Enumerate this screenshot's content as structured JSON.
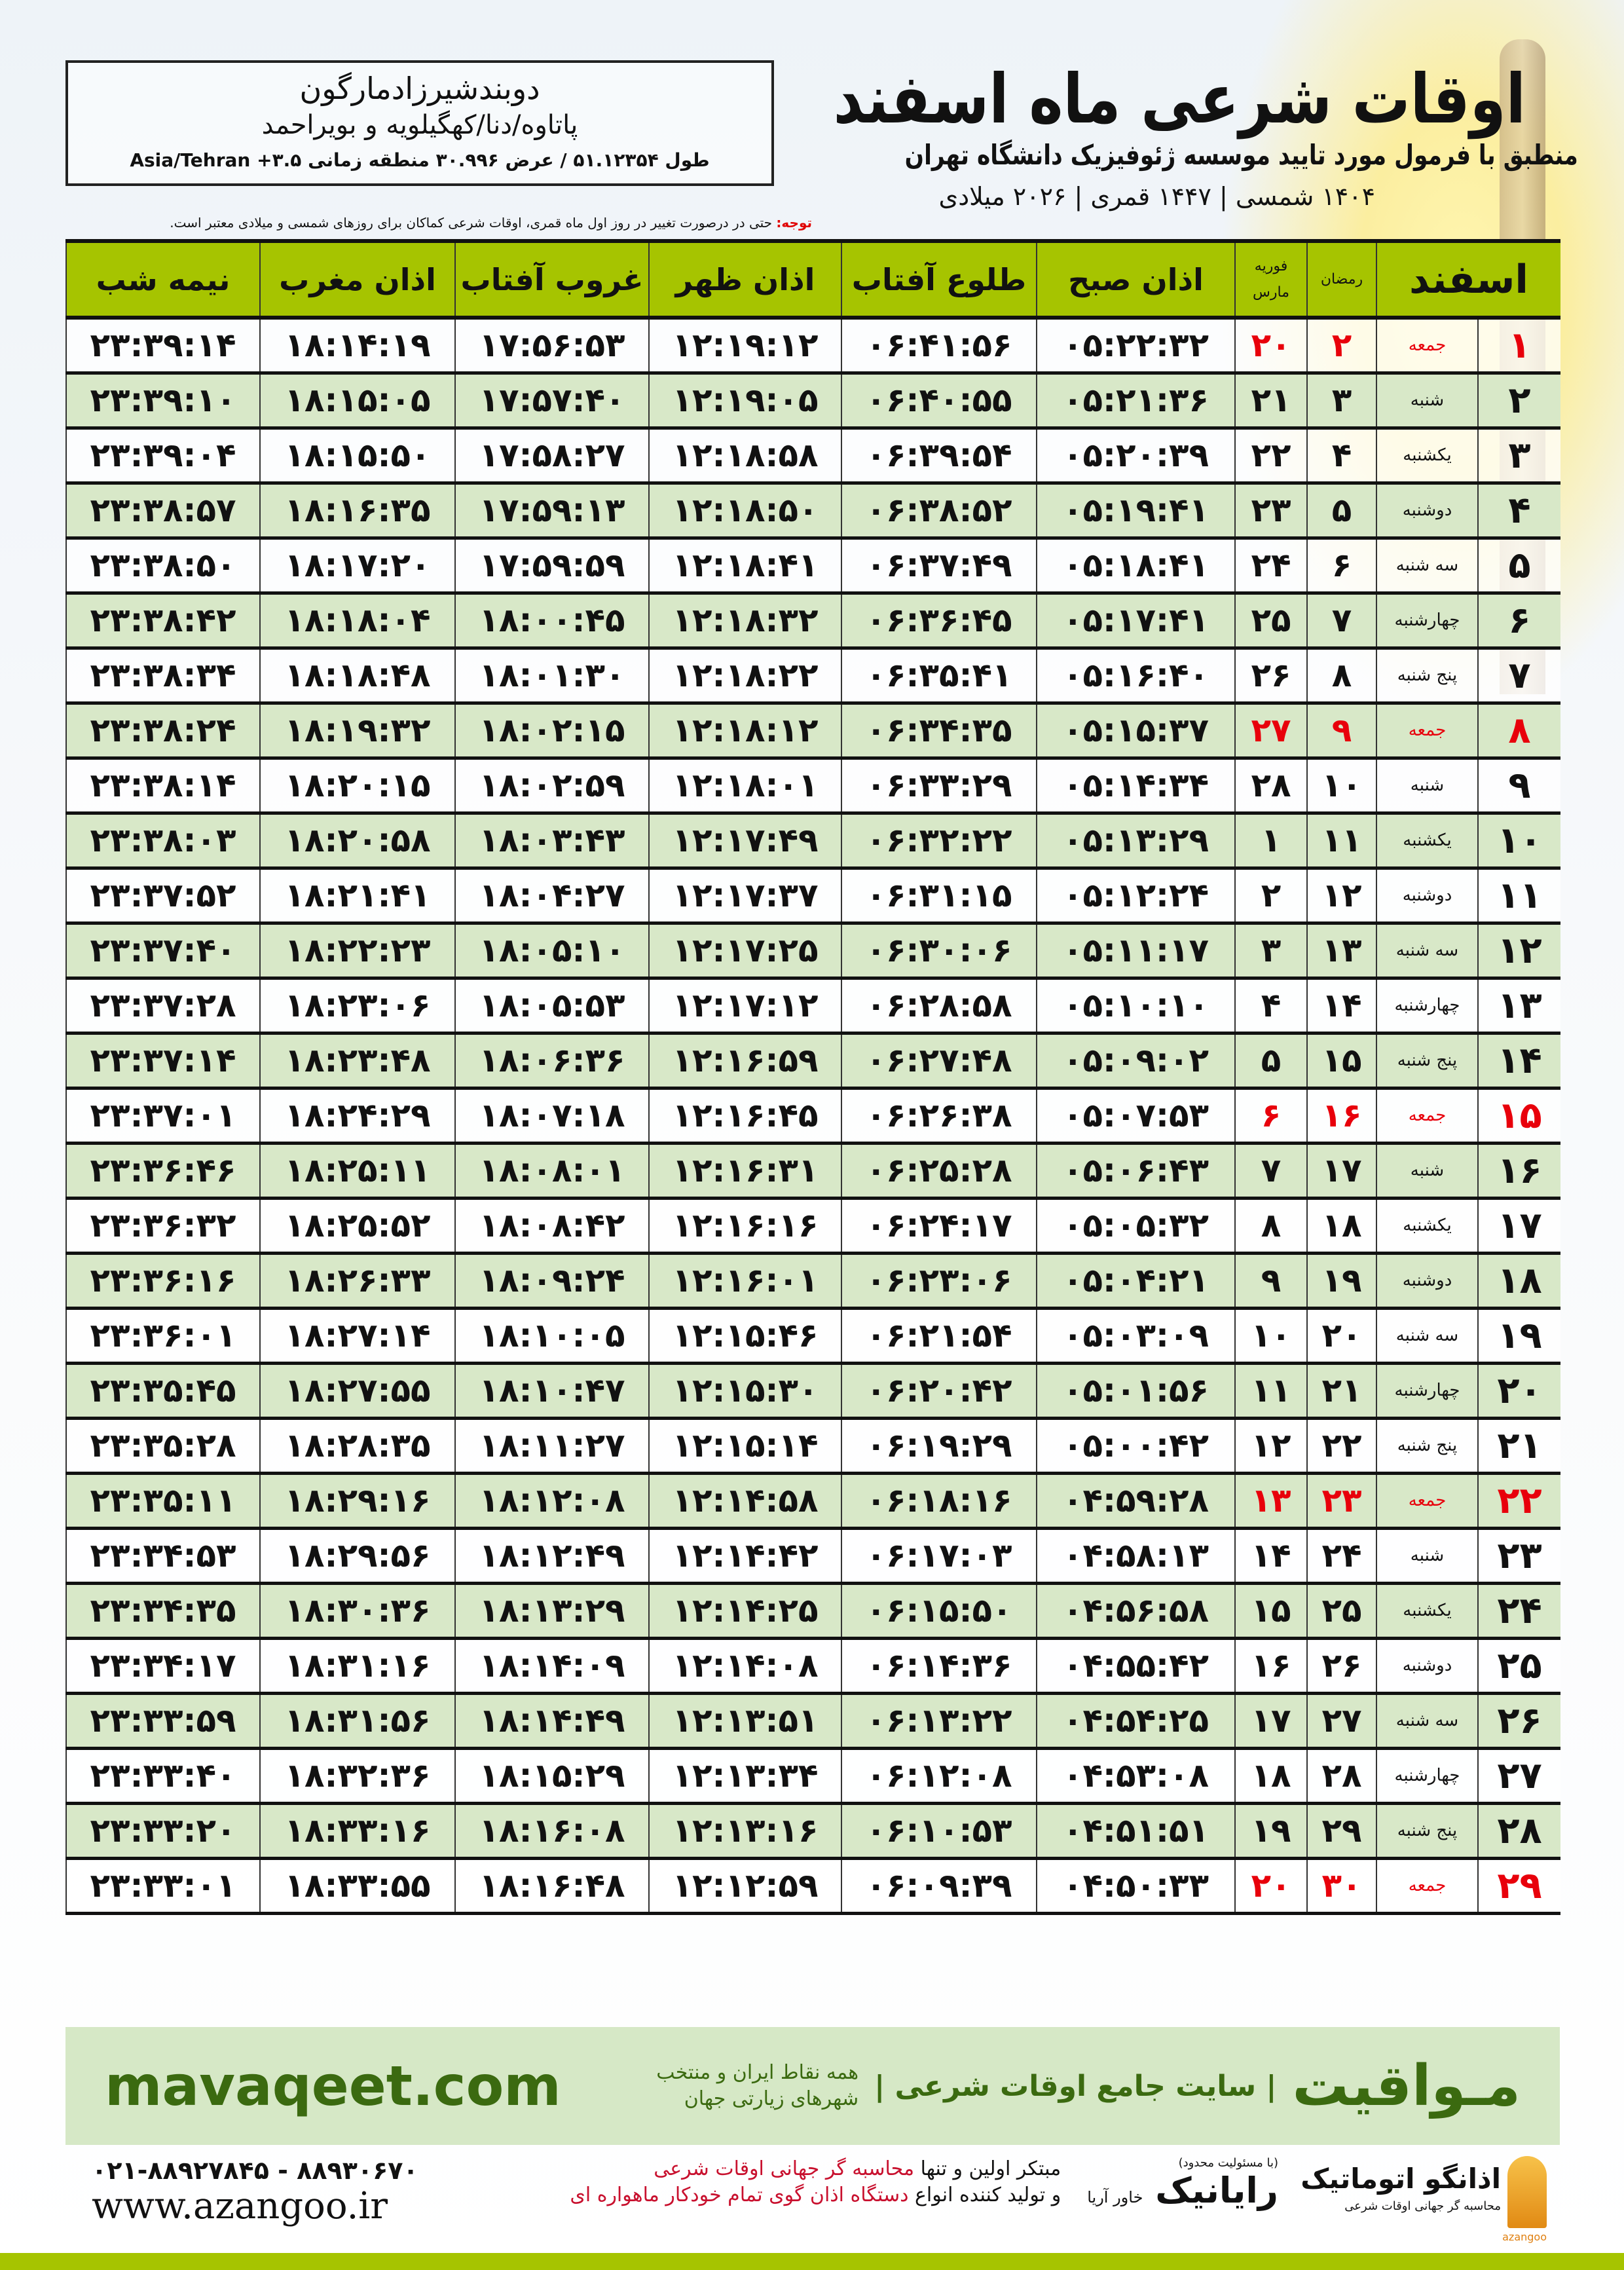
{
  "header": {
    "title": "اوقات شرعی ماه اسفند",
    "subtitle": "منطبق با فرمول مورد تایید موسسه ژئوفیزیک دانشگاه تهران",
    "dates": "۱۴۰۴ شمسی | ۱۴۴۷ قمری | ۲۰۲۶ میلادی"
  },
  "location": {
    "city": "دوبندشیرزادمارگون",
    "region": "پاتاوه/دنا/کهگیلویه و بویراحمد",
    "coords": "طول ۵۱.۱۲۳۵۴ / عرض ۳۰.۹۹۶ منطقه زمانی ۳.۵+ Asia/Tehran"
  },
  "note": {
    "label": "توجه:",
    "text": " حتی در درصورت تغییر در روز اول ماه قمری، اوقات شرعی کماکان برای روزهای شمسی و میلادی معتبر است."
  },
  "colors": {
    "header_green": "#a6c400",
    "row_green": "#d8e8c8",
    "friday_red": "#e8000b",
    "brand_green": "#3b6a10"
  },
  "table": {
    "headers": {
      "month": "اسفند",
      "ramadan": "رمضان",
      "greg_top": "فوریه",
      "greg_bottom": "مارس",
      "fajr": "اذان صبح",
      "sunrise": "طلوع آفتاب",
      "dhuhr": "اذان ظهر",
      "sunset": "غروب آفتاب",
      "maghrib": "اذان مغرب",
      "midnight": "نیمه شب"
    },
    "rows": [
      [
        "۱",
        "جمعه",
        "۲",
        "۲۰",
        "۰۵:۲۲:۳۲",
        "۰۶:۴۱:۵۶",
        "۱۲:۱۹:۱۲",
        "۱۷:۵۶:۵۳",
        "۱۸:۱۴:۱۹",
        "۲۳:۳۹:۱۴",
        true
      ],
      [
        "۲",
        "شنبه",
        "۳",
        "۲۱",
        "۰۵:۲۱:۳۶",
        "۰۶:۴۰:۵۵",
        "۱۲:۱۹:۰۵",
        "۱۷:۵۷:۴۰",
        "۱۸:۱۵:۰۵",
        "۲۳:۳۹:۱۰",
        false
      ],
      [
        "۳",
        "یکشنبه",
        "۴",
        "۲۲",
        "۰۵:۲۰:۳۹",
        "۰۶:۳۹:۵۴",
        "۱۲:۱۸:۵۸",
        "۱۷:۵۸:۲۷",
        "۱۸:۱۵:۵۰",
        "۲۳:۳۹:۰۴",
        false
      ],
      [
        "۴",
        "دوشنبه",
        "۵",
        "۲۳",
        "۰۵:۱۹:۴۱",
        "۰۶:۳۸:۵۲",
        "۱۲:۱۸:۵۰",
        "۱۷:۵۹:۱۳",
        "۱۸:۱۶:۳۵",
        "۲۳:۳۸:۵۷",
        false
      ],
      [
        "۵",
        "سه شنبه",
        "۶",
        "۲۴",
        "۰۵:۱۸:۴۱",
        "۰۶:۳۷:۴۹",
        "۱۲:۱۸:۴۱",
        "۱۷:۵۹:۵۹",
        "۱۸:۱۷:۲۰",
        "۲۳:۳۸:۵۰",
        false
      ],
      [
        "۶",
        "چهارشنبه",
        "۷",
        "۲۵",
        "۰۵:۱۷:۴۱",
        "۰۶:۳۶:۴۵",
        "۱۲:۱۸:۳۲",
        "۱۸:۰۰:۴۵",
        "۱۸:۱۸:۰۴",
        "۲۳:۳۸:۴۲",
        false
      ],
      [
        "۷",
        "پنج شنبه",
        "۸",
        "۲۶",
        "۰۵:۱۶:۴۰",
        "۰۶:۳۵:۴۱",
        "۱۲:۱۸:۲۲",
        "۱۸:۰۱:۳۰",
        "۱۸:۱۸:۴۸",
        "۲۳:۳۸:۳۴",
        false
      ],
      [
        "۸",
        "جمعه",
        "۹",
        "۲۷",
        "۰۵:۱۵:۳۷",
        "۰۶:۳۴:۳۵",
        "۱۲:۱۸:۱۲",
        "۱۸:۰۲:۱۵",
        "۱۸:۱۹:۳۲",
        "۲۳:۳۸:۲۴",
        true
      ],
      [
        "۹",
        "شنبه",
        "۱۰",
        "۲۸",
        "۰۵:۱۴:۳۴",
        "۰۶:۳۳:۲۹",
        "۱۲:۱۸:۰۱",
        "۱۸:۰۲:۵۹",
        "۱۸:۲۰:۱۵",
        "۲۳:۳۸:۱۴",
        false
      ],
      [
        "۱۰",
        "یکشنبه",
        "۱۱",
        "۱",
        "۰۵:۱۳:۲۹",
        "۰۶:۳۲:۲۲",
        "۱۲:۱۷:۴۹",
        "۱۸:۰۳:۴۳",
        "۱۸:۲۰:۵۸",
        "۲۳:۳۸:۰۳",
        false
      ],
      [
        "۱۱",
        "دوشنبه",
        "۱۲",
        "۲",
        "۰۵:۱۲:۲۴",
        "۰۶:۳۱:۱۵",
        "۱۲:۱۷:۳۷",
        "۱۸:۰۴:۲۷",
        "۱۸:۲۱:۴۱",
        "۲۳:۳۷:۵۲",
        false
      ],
      [
        "۱۲",
        "سه شنبه",
        "۱۳",
        "۳",
        "۰۵:۱۱:۱۷",
        "۰۶:۳۰:۰۶",
        "۱۲:۱۷:۲۵",
        "۱۸:۰۵:۱۰",
        "۱۸:۲۲:۲۳",
        "۲۳:۳۷:۴۰",
        false
      ],
      [
        "۱۳",
        "چهارشنبه",
        "۱۴",
        "۴",
        "۰۵:۱۰:۱۰",
        "۰۶:۲۸:۵۸",
        "۱۲:۱۷:۱۲",
        "۱۸:۰۵:۵۳",
        "۱۸:۲۳:۰۶",
        "۲۳:۳۷:۲۸",
        false
      ],
      [
        "۱۴",
        "پنج شنبه",
        "۱۵",
        "۵",
        "۰۵:۰۹:۰۲",
        "۰۶:۲۷:۴۸",
        "۱۲:۱۶:۵۹",
        "۱۸:۰۶:۳۶",
        "۱۸:۲۳:۴۸",
        "۲۳:۳۷:۱۴",
        false
      ],
      [
        "۱۵",
        "جمعه",
        "۱۶",
        "۶",
        "۰۵:۰۷:۵۳",
        "۰۶:۲۶:۳۸",
        "۱۲:۱۶:۴۵",
        "۱۸:۰۷:۱۸",
        "۱۸:۲۴:۲۹",
        "۲۳:۳۷:۰۱",
        true
      ],
      [
        "۱۶",
        "شنبه",
        "۱۷",
        "۷",
        "۰۵:۰۶:۴۳",
        "۰۶:۲۵:۲۸",
        "۱۲:۱۶:۳۱",
        "۱۸:۰۸:۰۱",
        "۱۸:۲۵:۱۱",
        "۲۳:۳۶:۴۶",
        false
      ],
      [
        "۱۷",
        "یکشنبه",
        "۱۸",
        "۸",
        "۰۵:۰۵:۳۲",
        "۰۶:۲۴:۱۷",
        "۱۲:۱۶:۱۶",
        "۱۸:۰۸:۴۲",
        "۱۸:۲۵:۵۲",
        "۲۳:۳۶:۳۲",
        false
      ],
      [
        "۱۸",
        "دوشنبه",
        "۱۹",
        "۹",
        "۰۵:۰۴:۲۱",
        "۰۶:۲۳:۰۶",
        "۱۲:۱۶:۰۱",
        "۱۸:۰۹:۲۴",
        "۱۸:۲۶:۳۳",
        "۲۳:۳۶:۱۶",
        false
      ],
      [
        "۱۹",
        "سه شنبه",
        "۲۰",
        "۱۰",
        "۰۵:۰۳:۰۹",
        "۰۶:۲۱:۵۴",
        "۱۲:۱۵:۴۶",
        "۱۸:۱۰:۰۵",
        "۱۸:۲۷:۱۴",
        "۲۳:۳۶:۰۱",
        false
      ],
      [
        "۲۰",
        "چهارشنبه",
        "۲۱",
        "۱۱",
        "۰۵:۰۱:۵۶",
        "۰۶:۲۰:۴۲",
        "۱۲:۱۵:۳۰",
        "۱۸:۱۰:۴۷",
        "۱۸:۲۷:۵۵",
        "۲۳:۳۵:۴۵",
        false
      ],
      [
        "۲۱",
        "پنج شنبه",
        "۲۲",
        "۱۲",
        "۰۵:۰۰:۴۲",
        "۰۶:۱۹:۲۹",
        "۱۲:۱۵:۱۴",
        "۱۸:۱۱:۲۷",
        "۱۸:۲۸:۳۵",
        "۲۳:۳۵:۲۸",
        false
      ],
      [
        "۲۲",
        "جمعه",
        "۲۳",
        "۱۳",
        "۰۴:۵۹:۲۸",
        "۰۶:۱۸:۱۶",
        "۱۲:۱۴:۵۸",
        "۱۸:۱۲:۰۸",
        "۱۸:۲۹:۱۶",
        "۲۳:۳۵:۱۱",
        true
      ],
      [
        "۲۳",
        "شنبه",
        "۲۴",
        "۱۴",
        "۰۴:۵۸:۱۳",
        "۰۶:۱۷:۰۳",
        "۱۲:۱۴:۴۲",
        "۱۸:۱۲:۴۹",
        "۱۸:۲۹:۵۶",
        "۲۳:۳۴:۵۳",
        false
      ],
      [
        "۲۴",
        "یکشنبه",
        "۲۵",
        "۱۵",
        "۰۴:۵۶:۵۸",
        "۰۶:۱۵:۵۰",
        "۱۲:۱۴:۲۵",
        "۱۸:۱۳:۲۹",
        "۱۸:۳۰:۳۶",
        "۲۳:۳۴:۳۵",
        false
      ],
      [
        "۲۵",
        "دوشنبه",
        "۲۶",
        "۱۶",
        "۰۴:۵۵:۴۲",
        "۰۶:۱۴:۳۶",
        "۱۲:۱۴:۰۸",
        "۱۸:۱۴:۰۹",
        "۱۸:۳۱:۱۶",
        "۲۳:۳۴:۱۷",
        false
      ],
      [
        "۲۶",
        "سه شنبه",
        "۲۷",
        "۱۷",
        "۰۴:۵۴:۲۵",
        "۰۶:۱۳:۲۲",
        "۱۲:۱۳:۵۱",
        "۱۸:۱۴:۴۹",
        "۱۸:۳۱:۵۶",
        "۲۳:۳۳:۵۹",
        false
      ],
      [
        "۲۷",
        "چهارشنبه",
        "۲۸",
        "۱۸",
        "۰۴:۵۳:۰۸",
        "۰۶:۱۲:۰۸",
        "۱۲:۱۳:۳۴",
        "۱۸:۱۵:۲۹",
        "۱۸:۳۲:۳۶",
        "۲۳:۳۳:۴۰",
        false
      ],
      [
        "۲۸",
        "پنج شنبه",
        "۲۹",
        "۱۹",
        "۰۴:۵۱:۵۱",
        "۰۶:۱۰:۵۳",
        "۱۲:۱۳:۱۶",
        "۱۸:۱۶:۰۸",
        "۱۸:۳۳:۱۶",
        "۲۳:۳۳:۲۰",
        false
      ],
      [
        "۲۹",
        "جمعه",
        "۳۰",
        "۲۰",
        "۰۴:۵۰:۳۳",
        "۰۶:۰۹:۳۹",
        "۱۲:۱۲:۵۹",
        "۱۸:۱۶:۴۸",
        "۱۸:۳۳:۵۵",
        "۲۳:۳۳:۰۱",
        true
      ]
    ]
  },
  "footer": {
    "brand": "مـواقیت",
    "tagline": "| سایت جامع اوقات شرعی |",
    "tagline2": "همه نقاط ایران و منتخب شهرهای زیارتی جهان",
    "site": "mavaqeet.com",
    "logo1_name": "اذانگو اتوماتیک",
    "logo1_sub": "محاسبه گر جهانی اوقات شرعی",
    "logo1_en": "azangoo",
    "logo2_small": "(با مسئولیت محدود)",
    "logo2_name": "رایانیک",
    "logo2_sub": "خاور آریا",
    "promo1_a": "مبتکر اولین و تنها ",
    "promo1_b": "محاسبه گر جهانی اوقات شرعی",
    "promo2_a": "و تولید کننده انواع ",
    "promo2_b": "دستگاه اذان گوی تمام خودکار ماهواره ای",
    "phone": "۰۲۱-۸۸۹۲۷۸۴۵ - ۸۸۹۳۰۶۷۰",
    "web": "www.azangoo.ir"
  }
}
